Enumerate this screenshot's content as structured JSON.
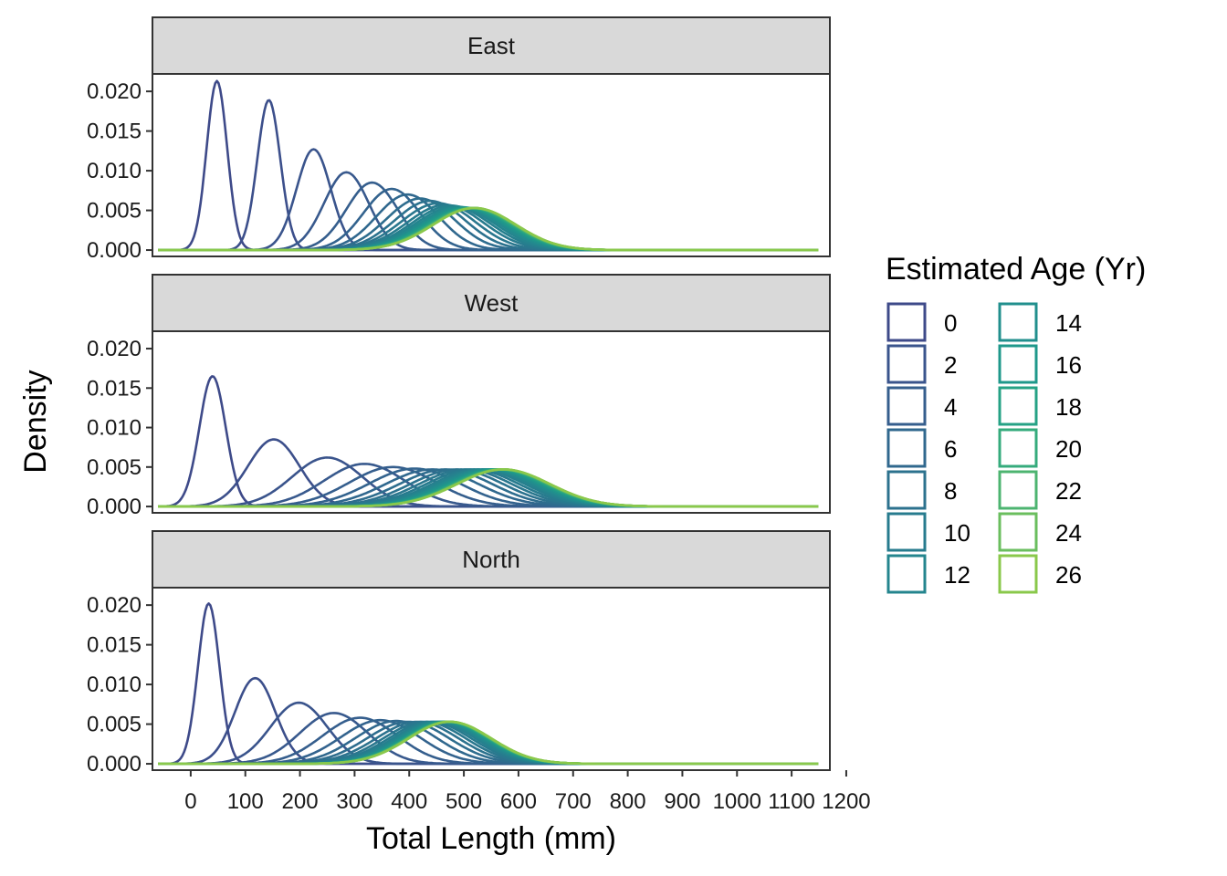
{
  "chart_data": {
    "type": "line",
    "xlabel": "Total Length (mm)",
    "ylabel": "Density",
    "xlim": [
      -70,
      1170
    ],
    "ylim": [
      -0.0008,
      0.0222
    ],
    "x_ticks": [
      0,
      100,
      200,
      300,
      400,
      500,
      600,
      700,
      800,
      900,
      1000,
      1100,
      1200
    ],
    "x_tick_labels": [
      "0",
      "100",
      "200",
      "300",
      "400",
      "500",
      "600",
      "700",
      "800",
      "900",
      "1000",
      "1100",
      "1200"
    ],
    "y_ticks": [
      0,
      0.005,
      0.01,
      0.015,
      0.02
    ],
    "y_tick_labels": [
      "0.000",
      "0.005",
      "0.010",
      "0.015",
      "0.020"
    ],
    "x_range": [
      -60,
      1150
    ],
    "grid": false,
    "legend": {
      "title": "Estimated Age (Yr)",
      "placement": "right",
      "columns": 2,
      "entries": [
        {
          "label": "0",
          "color": "#3E4A89"
        },
        {
          "label": "2",
          "color": "#3A548C"
        },
        {
          "label": "4",
          "color": "#355E8D"
        },
        {
          "label": "6",
          "color": "#30688E"
        },
        {
          "label": "8",
          "color": "#2C728E"
        },
        {
          "label": "10",
          "color": "#277B8E"
        },
        {
          "label": "12",
          "color": "#24858E"
        },
        {
          "label": "14",
          "color": "#218F8D"
        },
        {
          "label": "16",
          "color": "#1F988B"
        },
        {
          "label": "18",
          "color": "#25A285"
        },
        {
          "label": "20",
          "color": "#35AB7C"
        },
        {
          "label": "22",
          "color": "#4DB470"
        },
        {
          "label": "24",
          "color": "#6ABE5E"
        },
        {
          "label": "26",
          "color": "#8AC84B"
        }
      ]
    },
    "panels": [
      {
        "label": "East",
        "series": [
          {
            "name": "0",
            "mean": 48,
            "peak": 0.0213
          },
          {
            "name": "1",
            "mean": 143,
            "peak": 0.0189
          },
          {
            "name": "2",
            "mean": 225,
            "peak": 0.0127
          },
          {
            "name": "3",
            "mean": 285,
            "peak": 0.0098
          },
          {
            "name": "4",
            "mean": 332,
            "peak": 0.0085
          },
          {
            "name": "5",
            "mean": 368,
            "peak": 0.0077
          },
          {
            "name": "6",
            "mean": 397,
            "peak": 0.007
          },
          {
            "name": "7",
            "mean": 420,
            "peak": 0.0065
          },
          {
            "name": "8",
            "mean": 438,
            "peak": 0.0062
          },
          {
            "name": "9",
            "mean": 453,
            "peak": 0.0059
          },
          {
            "name": "10",
            "mean": 466,
            "peak": 0.0057
          },
          {
            "name": "11",
            "mean": 476,
            "peak": 0.0056
          },
          {
            "name": "12",
            "mean": 484,
            "peak": 0.0055
          },
          {
            "name": "13",
            "mean": 491,
            "peak": 0.0054
          },
          {
            "name": "14",
            "mean": 497,
            "peak": 0.0054
          },
          {
            "name": "15",
            "mean": 501,
            "peak": 0.0053
          },
          {
            "name": "16",
            "mean": 505,
            "peak": 0.0053
          },
          {
            "name": "17",
            "mean": 508,
            "peak": 0.0053
          },
          {
            "name": "18",
            "mean": 511,
            "peak": 0.0053
          },
          {
            "name": "19",
            "mean": 513,
            "peak": 0.0053
          },
          {
            "name": "20",
            "mean": 515,
            "peak": 0.0053
          },
          {
            "name": "21",
            "mean": 516,
            "peak": 0.0053
          },
          {
            "name": "22",
            "mean": 517,
            "peak": 0.0053
          },
          {
            "name": "23",
            "mean": 518,
            "peak": 0.0053
          },
          {
            "name": "24",
            "mean": 519,
            "peak": 0.0053
          },
          {
            "name": "25",
            "mean": 519,
            "peak": 0.0053
          },
          {
            "name": "26",
            "mean": 520,
            "peak": 0.0053
          }
        ]
      },
      {
        "label": "West",
        "series": [
          {
            "name": "0",
            "mean": 40,
            "peak": 0.0165
          },
          {
            "name": "1",
            "mean": 152,
            "peak": 0.0085
          },
          {
            "name": "2",
            "mean": 250,
            "peak": 0.0062
          },
          {
            "name": "3",
            "mean": 318,
            "peak": 0.0054
          },
          {
            "name": "4",
            "mean": 370,
            "peak": 0.005
          },
          {
            "name": "5",
            "mean": 410,
            "peak": 0.0048
          },
          {
            "name": "6",
            "mean": 442,
            "peak": 0.0047
          },
          {
            "name": "7",
            "mean": 467,
            "peak": 0.0047
          },
          {
            "name": "8",
            "mean": 487,
            "peak": 0.0047
          },
          {
            "name": "9",
            "mean": 503,
            "peak": 0.0047
          },
          {
            "name": "10",
            "mean": 516,
            "peak": 0.0047
          },
          {
            "name": "11",
            "mean": 527,
            "peak": 0.0047
          },
          {
            "name": "12",
            "mean": 536,
            "peak": 0.0047
          },
          {
            "name": "13",
            "mean": 543,
            "peak": 0.0047
          },
          {
            "name": "14",
            "mean": 549,
            "peak": 0.0047
          },
          {
            "name": "15",
            "mean": 554,
            "peak": 0.0047
          },
          {
            "name": "16",
            "mean": 558,
            "peak": 0.0047
          },
          {
            "name": "17",
            "mean": 561,
            "peak": 0.0047
          },
          {
            "name": "18",
            "mean": 564,
            "peak": 0.0047
          },
          {
            "name": "19",
            "mean": 566,
            "peak": 0.0047
          },
          {
            "name": "20",
            "mean": 568,
            "peak": 0.0047
          },
          {
            "name": "21",
            "mean": 569,
            "peak": 0.0047
          },
          {
            "name": "22",
            "mean": 570,
            "peak": 0.0047
          },
          {
            "name": "23",
            "mean": 571,
            "peak": 0.0047
          },
          {
            "name": "24",
            "mean": 572,
            "peak": 0.0047
          },
          {
            "name": "25",
            "mean": 572,
            "peak": 0.0047
          },
          {
            "name": "26",
            "mean": 573,
            "peak": 0.0047
          }
        ]
      },
      {
        "label": "North",
        "series": [
          {
            "name": "0",
            "mean": 33,
            "peak": 0.0202
          },
          {
            "name": "1",
            "mean": 118,
            "peak": 0.0108
          },
          {
            "name": "2",
            "mean": 198,
            "peak": 0.0077
          },
          {
            "name": "3",
            "mean": 262,
            "peak": 0.0064
          },
          {
            "name": "4",
            "mean": 310,
            "peak": 0.0058
          },
          {
            "name": "5",
            "mean": 347,
            "peak": 0.0055
          },
          {
            "name": "6",
            "mean": 376,
            "peak": 0.0054
          },
          {
            "name": "7",
            "mean": 398,
            "peak": 0.0053
          },
          {
            "name": "8",
            "mean": 415,
            "peak": 0.0053
          },
          {
            "name": "9",
            "mean": 428,
            "peak": 0.0053
          },
          {
            "name": "10",
            "mean": 438,
            "peak": 0.0053
          },
          {
            "name": "11",
            "mean": 446,
            "peak": 0.0053
          },
          {
            "name": "12",
            "mean": 452,
            "peak": 0.0053
          },
          {
            "name": "13",
            "mean": 457,
            "peak": 0.0053
          },
          {
            "name": "14",
            "mean": 461,
            "peak": 0.0053
          },
          {
            "name": "15",
            "mean": 464,
            "peak": 0.0053
          },
          {
            "name": "16",
            "mean": 466,
            "peak": 0.0053
          },
          {
            "name": "17",
            "mean": 468,
            "peak": 0.0053
          },
          {
            "name": "18",
            "mean": 469,
            "peak": 0.0053
          },
          {
            "name": "19",
            "mean": 470,
            "peak": 0.0053
          },
          {
            "name": "20",
            "mean": 471,
            "peak": 0.0053
          },
          {
            "name": "21",
            "mean": 472,
            "peak": 0.0053
          },
          {
            "name": "22",
            "mean": 473,
            "peak": 0.0053
          },
          {
            "name": "23",
            "mean": 473,
            "peak": 0.0053
          },
          {
            "name": "24",
            "mean": 474,
            "peak": 0.0053
          },
          {
            "name": "25",
            "mean": 474,
            "peak": 0.0053
          },
          {
            "name": "26",
            "mean": 475,
            "peak": 0.0053
          }
        ]
      }
    ]
  }
}
